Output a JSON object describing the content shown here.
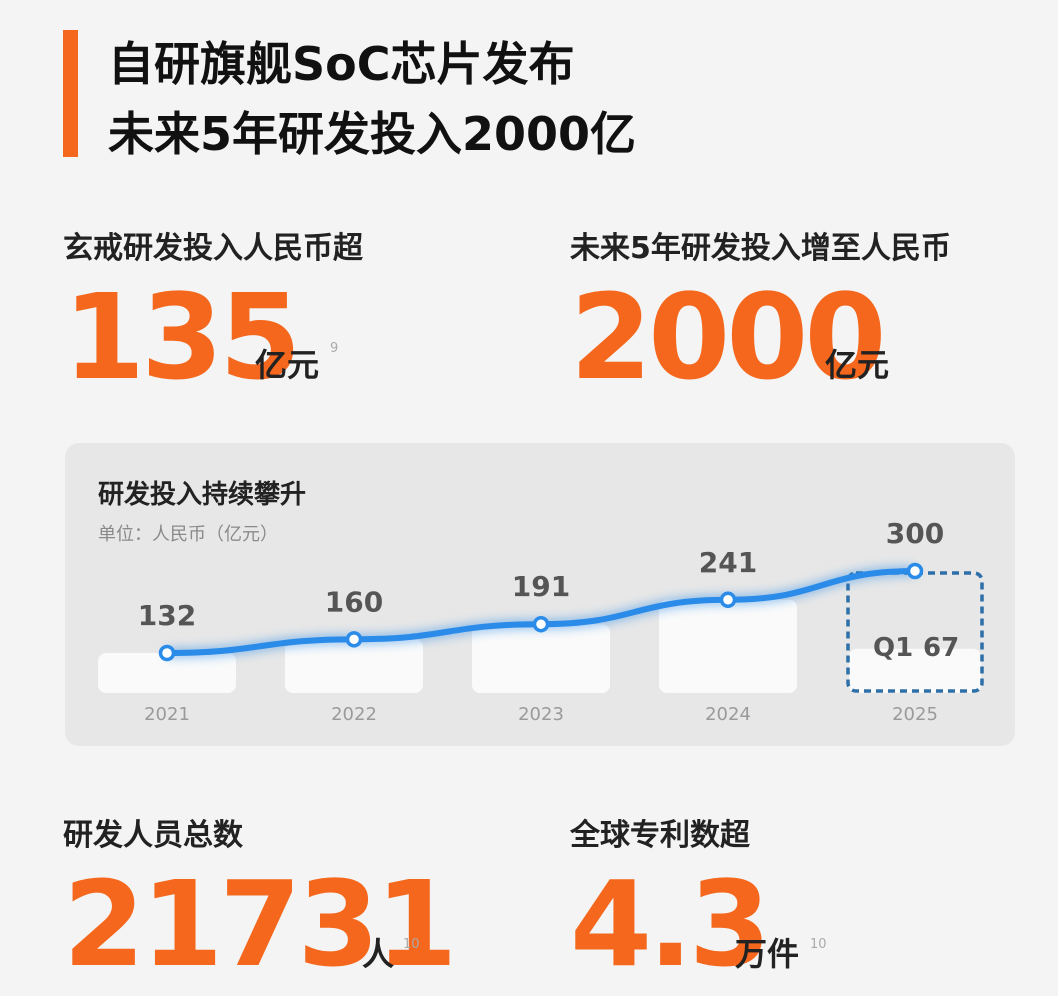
{
  "header": {
    "title_lines": [
      "自研旗舰SoC芯片发布",
      "未来5年研发投入2000亿"
    ]
  },
  "stats": [
    {
      "label": "玄戒研发投入人民币超",
      "value": 135,
      "unit": "亿元",
      "note": "9"
    },
    {
      "label": "未来5年研发投入增至人民币",
      "value": 2000,
      "unit": "亿元"
    },
    {
      "label": "研发人员总数",
      "value": 21731,
      "unit": "人",
      "note": "10"
    },
    {
      "label": "全球专利数超",
      "value": 4.3,
      "unit": "万件",
      "note": "10"
    }
  ],
  "chart_data": {
    "type": "line",
    "title": "研发投入持续攀升",
    "subtitle": "单位：人民币（亿元）",
    "categories": [
      "2021",
      "2022",
      "2023",
      "2024",
      "2025"
    ],
    "values": [
      132,
      160,
      191,
      241,
      300
    ],
    "color": "#2b8be8",
    "annotation": {
      "label": "Q1",
      "value": 67
    }
  }
}
